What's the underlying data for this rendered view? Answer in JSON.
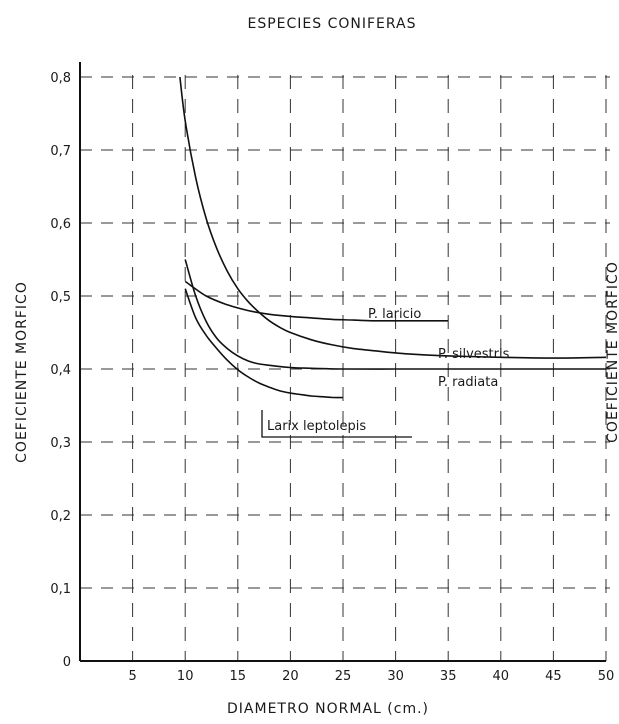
{
  "chart_data": {
    "type": "line",
    "title": "ESPECIES  CONIFERAS",
    "xlabel": "DIAMETRO  NORMAL  (cm.)",
    "ylabel": "COEFICIENTE  MORFICO",
    "ylabel_right": "COEFICIENTE  MORFICO",
    "xlim": [
      0,
      50
    ],
    "ylim": [
      0,
      0.8
    ],
    "x_ticks": [
      5,
      10,
      15,
      20,
      25,
      30,
      35,
      40,
      45,
      50
    ],
    "x_tick_labels": [
      "5",
      "10",
      "15",
      "20",
      "25",
      "30",
      "35",
      "40",
      "45",
      "50"
    ],
    "y_ticks": [
      0,
      0.1,
      0.2,
      0.3,
      0.4,
      0.5,
      0.6,
      0.7,
      0.8
    ],
    "y_tick_labels": [
      "0",
      "0,1",
      "0,2",
      "0,3",
      "0,4",
      "0,5",
      "0,6",
      "0,7",
      "0,8"
    ],
    "grid": true,
    "series": [
      {
        "name": "P. laricio",
        "x": [
          10,
          12,
          14,
          16,
          18,
          20,
          22,
          24,
          26,
          28,
          30,
          32,
          35
        ],
        "y": [
          0.52,
          0.5,
          0.488,
          0.48,
          0.475,
          0.472,
          0.47,
          0.468,
          0.467,
          0.466,
          0.466,
          0.466,
          0.466
        ]
      },
      {
        "name": "P. silvestris",
        "x": [
          9.5,
          10,
          11,
          12,
          13,
          14,
          15,
          16,
          17,
          18,
          19,
          20,
          22,
          24,
          26,
          28,
          30,
          32,
          35,
          40,
          45,
          50
        ],
        "y": [
          0.8,
          0.74,
          0.662,
          0.606,
          0.565,
          0.534,
          0.51,
          0.492,
          0.478,
          0.466,
          0.457,
          0.45,
          0.44,
          0.433,
          0.428,
          0.425,
          0.422,
          0.42,
          0.418,
          0.416,
          0.415,
          0.416
        ]
      },
      {
        "name": "P. radiata",
        "x": [
          10,
          11,
          12,
          13,
          14,
          15,
          16,
          17,
          18,
          20,
          22,
          25,
          30,
          35,
          40,
          45,
          50
        ],
        "y": [
          0.55,
          0.5,
          0.465,
          0.442,
          0.428,
          0.418,
          0.411,
          0.407,
          0.405,
          0.402,
          0.401,
          0.4,
          0.4,
          0.4,
          0.4,
          0.4,
          0.4
        ]
      },
      {
        "name": "Larix leptolepis",
        "x": [
          10,
          11,
          12,
          13,
          14,
          15,
          16,
          17,
          18,
          19,
          20,
          21,
          22,
          23,
          24,
          25
        ],
        "y": [
          0.51,
          0.47,
          0.446,
          0.428,
          0.412,
          0.399,
          0.389,
          0.381,
          0.375,
          0.37,
          0.367,
          0.365,
          0.363,
          0.362,
          0.361,
          0.361
        ]
      }
    ],
    "annotations": [
      "P. laricio",
      "P. silvestris",
      "P. radiata",
      "Larix leptolepis"
    ]
  }
}
